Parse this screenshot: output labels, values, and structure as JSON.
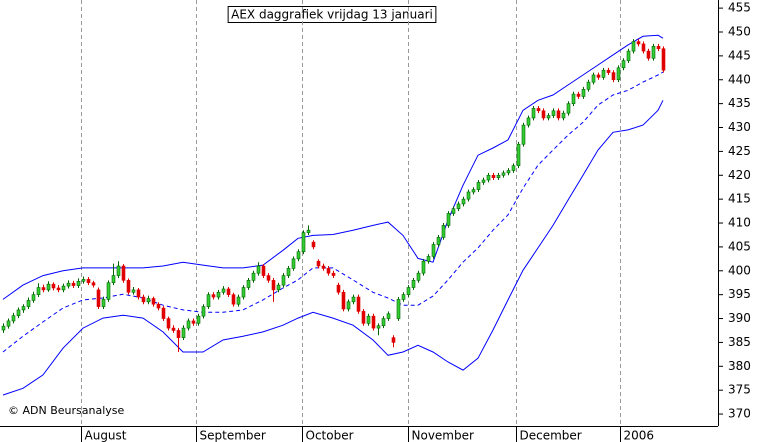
{
  "chart_data": {
    "type": "candlestick",
    "title": "AEX daggrafiek vrijdag 13 januari",
    "credit": "© ADN Beursanalyse",
    "up_color": "#33cc33",
    "down_color": "#e00000",
    "xlim": [
      -0.6,
      143
    ],
    "xticks": [
      {
        "value": 15.6,
        "label": "August"
      },
      {
        "value": 38.6,
        "label": "September"
      },
      {
        "value": 59.8,
        "label": "October"
      },
      {
        "value": 81,
        "label": "November"
      },
      {
        "value": 102.6,
        "label": "December"
      },
      {
        "value": 123.4,
        "label": "2006"
      }
    ],
    "ylim": [
      367.5,
      456.7
    ],
    "yticks": [
      370,
      375,
      380,
      385,
      390,
      395,
      400,
      405,
      410,
      415,
      420,
      425,
      430,
      435,
      440,
      445,
      450,
      455
    ],
    "ohlc": [
      [
        387.6,
        389.0,
        387.0,
        388.4
      ],
      [
        388.4,
        390.0,
        387.9,
        389.5
      ],
      [
        389.5,
        391.2,
        389.0,
        390.6
      ],
      [
        390.6,
        392.3,
        390.1,
        391.8
      ],
      [
        391.8,
        393.0,
        391.2,
        392.5
      ],
      [
        392.5,
        394.4,
        392.0,
        393.8
      ],
      [
        393.8,
        395.6,
        393.3,
        395.0
      ],
      [
        395.0,
        397.4,
        394.5,
        396.5
      ],
      [
        396.5,
        397.1,
        395.5,
        396.0
      ],
      [
        396.0,
        397.8,
        395.6,
        397.2
      ],
      [
        397.2,
        397.6,
        395.9,
        396.4
      ],
      [
        396.4,
        397.0,
        395.5,
        396.0
      ],
      [
        396.0,
        397.3,
        395.5,
        396.8
      ],
      [
        396.8,
        398.0,
        396.3,
        397.4
      ],
      [
        397.4,
        397.9,
        396.4,
        396.9
      ],
      [
        396.9,
        398.4,
        396.4,
        397.8
      ],
      [
        397.8,
        398.8,
        397.3,
        398.2
      ],
      [
        398.2,
        398.7,
        397.0,
        397.5
      ],
      [
        397.5,
        397.9,
        396.5,
        397.0
      ],
      [
        396.0,
        396.5,
        392.0,
        392.5
      ],
      [
        392.5,
        394.6,
        392.0,
        394.0
      ],
      [
        394.0,
        398.0,
        393.5,
        397.5
      ],
      [
        397.5,
        401.5,
        397.0,
        399.0
      ],
      [
        399.0,
        402.0,
        398.5,
        401.0
      ],
      [
        401.0,
        401.4,
        397.5,
        398.0
      ],
      [
        398.0,
        398.4,
        395.0,
        395.5
      ],
      [
        395.5,
        396.6,
        395.0,
        396.0
      ],
      [
        396.0,
        396.4,
        394.0,
        394.5
      ],
      [
        394.5,
        395.0,
        393.0,
        393.5
      ],
      [
        393.5,
        394.8,
        393.0,
        394.2
      ],
      [
        394.2,
        394.6,
        392.5,
        393.0
      ],
      [
        393.0,
        393.4,
        391.7,
        392.2
      ],
      [
        392.2,
        392.6,
        389.5,
        390.0
      ],
      [
        390.0,
        390.4,
        387.5,
        388.0
      ],
      [
        388.0,
        388.6,
        387.0,
        387.5
      ],
      [
        387.5,
        388.0,
        383.0,
        386.0
      ],
      [
        386.0,
        388.6,
        385.5,
        388.0
      ],
      [
        388.0,
        390.0,
        387.5,
        389.5
      ],
      [
        389.5,
        390.0,
        388.5,
        389.0
      ],
      [
        389.0,
        391.0,
        388.5,
        390.5
      ],
      [
        390.5,
        393.0,
        390.0,
        392.5
      ],
      [
        392.5,
        395.5,
        392.0,
        395.0
      ],
      [
        395.0,
        395.5,
        394.0,
        394.5
      ],
      [
        394.5,
        396.0,
        394.0,
        395.5
      ],
      [
        395.5,
        396.8,
        395.0,
        396.2
      ],
      [
        396.2,
        396.6,
        394.5,
        395.0
      ],
      [
        395.0,
        395.4,
        392.5,
        393.0
      ],
      [
        393.0,
        395.0,
        392.5,
        394.5
      ],
      [
        394.5,
        397.0,
        394.0,
        396.5
      ],
      [
        396.5,
        398.5,
        396.0,
        398.0
      ],
      [
        398.0,
        400.0,
        397.5,
        399.5
      ],
      [
        399.5,
        401.8,
        399.0,
        401.0
      ],
      [
        401.0,
        401.4,
        398.5,
        399.0
      ],
      [
        399.0,
        399.5,
        397.5,
        398.0
      ],
      [
        398.0,
        398.5,
        393.5,
        396.0
      ],
      [
        396.0,
        397.5,
        395.5,
        397.0
      ],
      [
        397.0,
        399.5,
        396.5,
        399.0
      ],
      [
        399.0,
        401.0,
        398.5,
        400.5
      ],
      [
        400.5,
        403.0,
        400.0,
        402.5
      ],
      [
        402.5,
        404.5,
        402.0,
        404.0
      ],
      [
        404.0,
        408.5,
        403.5,
        408.0
      ],
      [
        408.0,
        409.5,
        407.5,
        408.5
      ],
      [
        406.0,
        406.4,
        404.5,
        405.0
      ],
      [
        402.0,
        402.4,
        400.5,
        401.0
      ],
      [
        401.0,
        401.5,
        400.0,
        400.5
      ],
      [
        400.5,
        401.0,
        399.0,
        399.5
      ],
      [
        399.5,
        400.0,
        398.5,
        399.0
      ],
      [
        397.0,
        397.5,
        395.0,
        395.5
      ],
      [
        395.5,
        396.0,
        391.5,
        392.0
      ],
      [
        392.0,
        394.0,
        391.5,
        393.5
      ],
      [
        393.5,
        395.0,
        393.0,
        394.5
      ],
      [
        394.5,
        395.0,
        391.0,
        391.5
      ],
      [
        391.5,
        392.0,
        388.5,
        389.0
      ],
      [
        389.0,
        391.0,
        388.5,
        390.5
      ],
      [
        390.5,
        391.0,
        387.5,
        388.0
      ],
      [
        388.0,
        389.0,
        386.5,
        388.5
      ],
      [
        388.5,
        390.5,
        388.0,
        390.0
      ],
      [
        390.0,
        391.5,
        389.5,
        391.0
      ],
      [
        386.0,
        386.5,
        384.0,
        385.0
      ],
      [
        390.0,
        394.5,
        389.5,
        394.0
      ],
      [
        394.0,
        395.5,
        393.5,
        395.0
      ],
      [
        395.0,
        397.0,
        394.5,
        396.5
      ],
      [
        396.5,
        398.5,
        396.0,
        398.0
      ],
      [
        398.0,
        400.0,
        397.5,
        399.5
      ],
      [
        399.5,
        402.5,
        399.0,
        402.0
      ],
      [
        402.0,
        403.5,
        401.5,
        403.0
      ],
      [
        403.0,
        406.0,
        402.5,
        405.5
      ],
      [
        405.5,
        407.5,
        405.0,
        407.0
      ],
      [
        407.0,
        410.0,
        406.5,
        409.5
      ],
      [
        409.5,
        412.5,
        409.0,
        412.0
      ],
      [
        412.0,
        413.5,
        411.5,
        413.0
      ],
      [
        413.0,
        414.5,
        412.5,
        414.0
      ],
      [
        414.0,
        415.5,
        413.5,
        415.0
      ],
      [
        415.0,
        417.0,
        414.5,
        416.5
      ],
      [
        416.5,
        417.5,
        416.0,
        417.0
      ],
      [
        417.0,
        419.0,
        416.5,
        418.5
      ],
      [
        418.5,
        419.5,
        418.0,
        419.0
      ],
      [
        419.0,
        420.5,
        418.5,
        420.0
      ],
      [
        420.0,
        420.5,
        419.0,
        419.5
      ],
      [
        419.5,
        420.5,
        419.0,
        420.0
      ],
      [
        420.0,
        421.0,
        419.5,
        420.5
      ],
      [
        420.5,
        421.5,
        420.0,
        421.0
      ],
      [
        421.0,
        422.5,
        420.5,
        422.0
      ],
      [
        422.0,
        427.0,
        421.5,
        426.5
      ],
      [
        426.5,
        431.0,
        426.0,
        430.5
      ],
      [
        430.5,
        432.5,
        430.0,
        432.0
      ],
      [
        432.0,
        434.5,
        431.5,
        434.0
      ],
      [
        434.0,
        434.5,
        433.0,
        433.5
      ],
      [
        433.5,
        434.0,
        431.5,
        432.0
      ],
      [
        432.0,
        433.0,
        431.5,
        432.5
      ],
      [
        432.5,
        434.0,
        432.0,
        433.5
      ],
      [
        433.5,
        434.0,
        431.5,
        432.0
      ],
      [
        432.0,
        433.5,
        431.5,
        433.0
      ],
      [
        433.0,
        435.5,
        432.5,
        435.0
      ],
      [
        435.0,
        437.5,
        434.5,
        437.0
      ],
      [
        437.0,
        437.5,
        436.0,
        436.5
      ],
      [
        436.5,
        438.5,
        436.0,
        438.0
      ],
      [
        438.0,
        440.0,
        437.5,
        439.5
      ],
      [
        439.5,
        441.5,
        439.0,
        441.0
      ],
      [
        441.0,
        441.5,
        440.0,
        440.5
      ],
      [
        440.5,
        442.5,
        440.0,
        442.0
      ],
      [
        442.0,
        442.5,
        441.0,
        441.5
      ],
      [
        441.5,
        442.0,
        439.5,
        440.0
      ],
      [
        440.0,
        443.0,
        439.5,
        442.5
      ],
      [
        442.5,
        444.5,
        442.0,
        444.0
      ],
      [
        444.0,
        446.5,
        443.5,
        446.0
      ],
      [
        446.0,
        448.5,
        445.5,
        448.0
      ],
      [
        448.0,
        448.5,
        447.0,
        447.5
      ],
      [
        447.5,
        448.0,
        445.5,
        446.0
      ],
      [
        446.0,
        446.5,
        444.0,
        444.5
      ],
      [
        444.5,
        447.5,
        444.0,
        447.0
      ],
      [
        447.0,
        447.5,
        446.0,
        446.5
      ],
      [
        446.5,
        447.0,
        441.5,
        442.0
      ]
    ],
    "band_x": [
      0,
      4,
      8,
      12,
      16,
      20,
      24,
      28,
      32,
      36,
      40,
      44,
      48,
      52,
      56,
      59,
      62,
      66,
      70,
      74,
      77,
      80,
      83,
      86,
      89,
      92,
      95,
      98,
      101,
      104,
      107,
      110,
      113,
      116,
      119,
      122,
      125,
      128,
      131,
      132
    ],
    "bands": [
      {
        "color": "#0000ff",
        "dashed": false,
        "values": [
          394,
          397,
          399,
          400,
          400.6,
          400.6,
          400.6,
          400.6,
          401,
          401.8,
          401.2,
          400.6,
          400.6,
          401.2,
          404.3,
          406.8,
          407.4,
          407.6,
          408.5,
          409.5,
          410.2,
          407.4,
          402.6,
          401.8,
          410.6,
          417.9,
          424.2,
          425.7,
          427.4,
          433.6,
          435.7,
          436.8,
          438.9,
          441,
          443.1,
          445.2,
          447.3,
          449.1,
          449.3,
          448.7
        ]
      },
      {
        "color": "#0000ff",
        "dashed": true,
        "values": [
          383,
          386.3,
          389.3,
          392.2,
          393.9,
          394.3,
          395.1,
          394.3,
          392.8,
          391.8,
          391.3,
          391.3,
          391.8,
          393.9,
          396.4,
          398.1,
          400.6,
          400.6,
          398.1,
          395.5,
          394.3,
          392.8,
          392.8,
          394.7,
          398.1,
          401.8,
          404.8,
          408.5,
          411.7,
          417.3,
          422.1,
          425.3,
          428.4,
          431.1,
          434.7,
          436.8,
          437.8,
          439.5,
          441,
          441.6
        ]
      },
      {
        "color": "#0000ff",
        "dashed": false,
        "values": [
          374,
          375.4,
          378.2,
          383.8,
          388,
          390.1,
          390.7,
          390.1,
          387.2,
          383,
          383,
          385.5,
          386.3,
          387.2,
          388.6,
          390.1,
          391.3,
          390.1,
          388.6,
          385.5,
          382.3,
          383,
          384.4,
          383,
          380.9,
          379.2,
          381.7,
          387.6,
          393.9,
          400.1,
          404.8,
          409.5,
          414.8,
          420,
          425.3,
          429,
          429.5,
          430.5,
          433.6,
          435.7
        ]
      }
    ]
  }
}
